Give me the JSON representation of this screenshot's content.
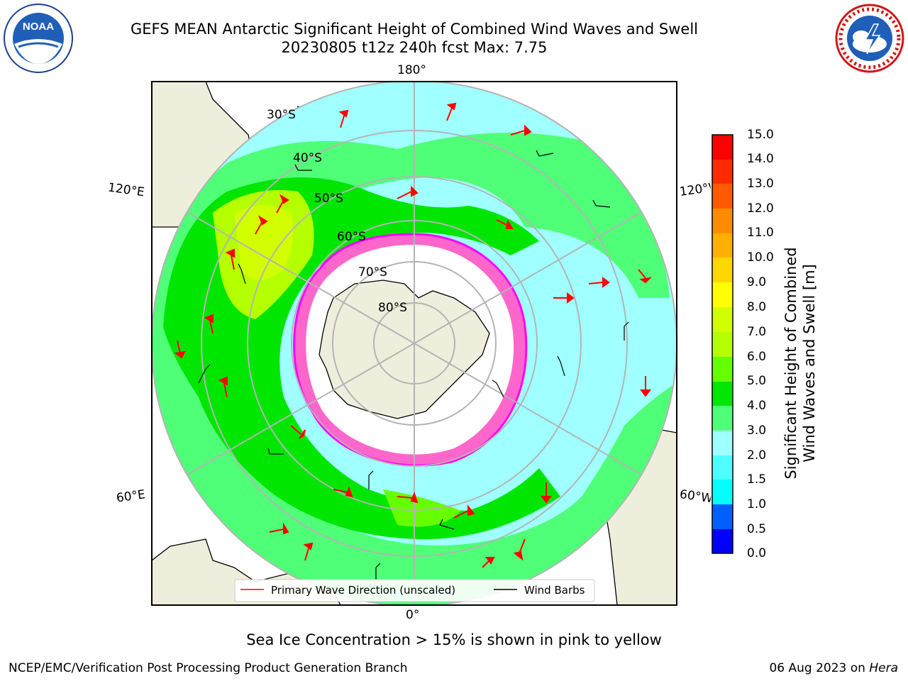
{
  "header": {
    "title_line1": "GEFS MEAN Antarctic Significant Height of Combined Wind Waves and Swell",
    "title_line2": "20230805 t12z 240h fcst   Max: 7.75"
  },
  "logos": {
    "left": "NOAA",
    "left_ring_text": "NATIONAL OCEANIC AND ATMOSPHERIC ADMINISTRATION · U.S. DEPARTMENT OF COMMERCE",
    "right_ring_text": "NATIONAL WEATHER SERVICE"
  },
  "map": {
    "longitude_labels": {
      "top": "180°",
      "bottom": "0°",
      "upper_left": "120°E",
      "lower_left": "60°E",
      "upper_right": "120°W",
      "lower_right": "60°W"
    },
    "latitude_labels": [
      "30°S",
      "40°S",
      "50°S",
      "60°S",
      "70°S",
      "80°S"
    ],
    "projection": "south polar stereographic"
  },
  "legend": {
    "wave_label": "Primary Wave Direction (unscaled)",
    "barb_label": "Wind Barbs",
    "wave_color": "#ff0000",
    "barb_color": "#000000"
  },
  "colorbar": {
    "ylabel_line1": "Significant Height of Combined",
    "ylabel_line2": "Wind Waves and Swell [m]",
    "ticks": [
      "0.0",
      "0.5",
      "1.0",
      "1.5",
      "2.0",
      "3.0",
      "4.0",
      "5.0",
      "6.0",
      "7.0",
      "8.0",
      "9.0",
      "10.0",
      "11.0",
      "12.0",
      "13.0",
      "14.0",
      "15.0"
    ],
    "colors": [
      "#0000ff",
      "#0060ff",
      "#00a0ff",
      "#00ffff",
      "#50ffff",
      "#a0ffff",
      "#50ff78",
      "#00e600",
      "#66ff00",
      "#b4ff00",
      "#d2ff00",
      "#ffff00",
      "#ffd700",
      "#ffb000",
      "#ff8c00",
      "#ff5a00",
      "#ff2a00",
      "#ff0000"
    ]
  },
  "footer": {
    "note": "Sea Ice Concentration > 15% is shown in pink to yellow",
    "left": "NCEP/EMC/Verification Post Processing Product Generation Branch",
    "right_date": "06 Aug 2023 on ",
    "right_host": "Hera"
  }
}
